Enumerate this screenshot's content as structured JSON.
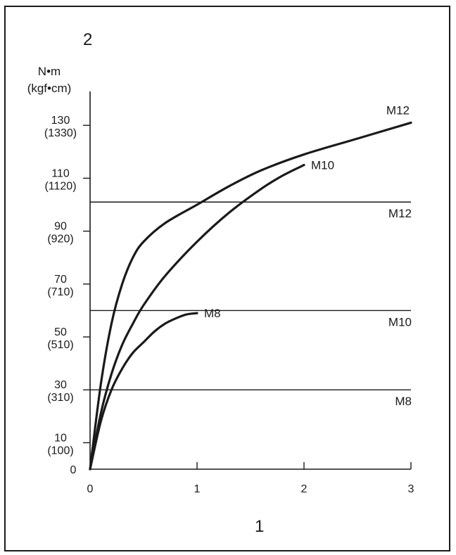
{
  "chart_data": {
    "type": "line",
    "figure_marker_y": "2",
    "figure_marker_x": "1",
    "y_unit_line1": "N•m",
    "y_unit_line2": "(kgf•cm)",
    "xlim": [
      0,
      3
    ],
    "ylim": [
      0,
      140
    ],
    "x_ticks": [
      {
        "value": 0,
        "label": "0"
      },
      {
        "value": 1,
        "label": "1"
      },
      {
        "value": 2,
        "label": "2"
      },
      {
        "value": 3,
        "label": "3"
      }
    ],
    "y_ticks": [
      {
        "value": 0,
        "label": "0",
        "sublabel": ""
      },
      {
        "value": 10,
        "label": "10",
        "sublabel": "(100)"
      },
      {
        "value": 30,
        "label": "30",
        "sublabel": "(310)"
      },
      {
        "value": 50,
        "label": "50",
        "sublabel": "(510)"
      },
      {
        "value": 70,
        "label": "70",
        "sublabel": "(710)"
      },
      {
        "value": 90,
        "label": "90",
        "sublabel": "(920)"
      },
      {
        "value": 110,
        "label": "110",
        "sublabel": "(1120)"
      },
      {
        "value": 130,
        "label": "130",
        "sublabel": "(1330)"
      }
    ],
    "series": [
      {
        "name": "M12",
        "x": [
          0,
          0.1,
          0.2,
          0.3,
          0.4,
          0.5,
          0.7,
          1.0,
          1.3,
          1.6,
          2.0,
          2.5,
          3.0
        ],
        "y": [
          0,
          32,
          55,
          70,
          80,
          86,
          93,
          100,
          107,
          113,
          119,
          125,
          131
        ]
      },
      {
        "name": "M10",
        "x": [
          0,
          0.1,
          0.2,
          0.3,
          0.4,
          0.5,
          0.7,
          1.0,
          1.3,
          1.6,
          1.8,
          2.0
        ],
        "y": [
          0,
          21,
          36,
          47,
          55,
          62,
          73,
          86,
          97,
          106,
          111,
          115
        ]
      },
      {
        "name": "M8",
        "x": [
          0,
          0.1,
          0.2,
          0.3,
          0.4,
          0.5,
          0.6,
          0.7,
          0.8,
          0.9,
          1.0
        ],
        "y": [
          0,
          18,
          30,
          38,
          44,
          48,
          52,
          55,
          57,
          58.5,
          59
        ]
      }
    ],
    "reference_lines": [
      {
        "name": "M12",
        "y": 101
      },
      {
        "name": "M10",
        "y": 60
      },
      {
        "name": "M8",
        "y": 30
      }
    ]
  }
}
